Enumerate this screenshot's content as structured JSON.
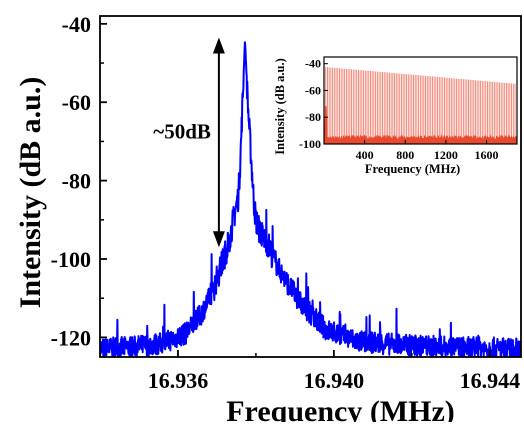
{
  "chart_data": [
    {
      "type": "line",
      "xlabel": "Frequency (MHz)",
      "ylabel": "Intensity (dB a.u.)",
      "xlim": [
        16.934,
        16.9448
      ],
      "ylim": [
        -125,
        -38
      ],
      "xticks": [
        16.936,
        16.94,
        16.944
      ],
      "xtick_labels": [
        "16.936",
        "16.940",
        "16.944"
      ],
      "yticks": [
        -40,
        -60,
        -80,
        -100,
        -120
      ],
      "ytick_labels": [
        "-40",
        "-60",
        "-80",
        "-100",
        "-120"
      ],
      "grid": false,
      "series": [
        {
          "color": "#0000ff",
          "x": [
            16.934,
            16.9348,
            16.9356,
            16.9362,
            16.9366,
            16.9369,
            16.9371,
            16.9373,
            16.9374,
            16.93755,
            16.9376,
            16.93765,
            16.93772,
            16.9378,
            16.9379,
            16.93795,
            16.938,
            16.9381,
            16.9383,
            16.9385,
            16.9388,
            16.9392,
            16.9398,
            16.9406,
            16.9418,
            16.943,
            16.9448
          ],
          "y": [
            -123,
            -122.5,
            -121.5,
            -119,
            -114,
            -108,
            -102,
            -96,
            -91,
            -84,
            -75,
            -62,
            -44,
            -62,
            -78,
            -86,
            -90,
            -93,
            -96,
            -101,
            -106,
            -112,
            -118,
            -121,
            -122,
            -122.5,
            -123
          ]
        }
      ],
      "annotations": [
        {
          "text": "~50dB",
          "type": "double-arrow",
          "x": 16.93705,
          "y_range": [
            -43.5,
            -97
          ]
        }
      ]
    },
    {
      "type": "bar",
      "inset": true,
      "xlabel": "Frequency (MHz)",
      "ylabel": "Intensity (dB a.u.)",
      "xlim": [
        0,
        1900
      ],
      "ylim": [
        -100,
        -35
      ],
      "xticks": [
        400,
        800,
        1200,
        1600
      ],
      "xtick_labels": [
        "400",
        "800",
        "1200",
        "1600"
      ],
      "yticks": [
        -40,
        -60,
        -80,
        -100
      ],
      "ytick_labels": [
        "-40",
        "-60",
        "-80",
        "-100"
      ],
      "grid": false,
      "comb_color": "#f08070",
      "floor_color": "#e84a30",
      "series": [
        {
          "x": [
            17,
            1883
          ],
          "y": [
            -42.5,
            -55
          ],
          "spacing": 16.94
        }
      ]
    }
  ]
}
